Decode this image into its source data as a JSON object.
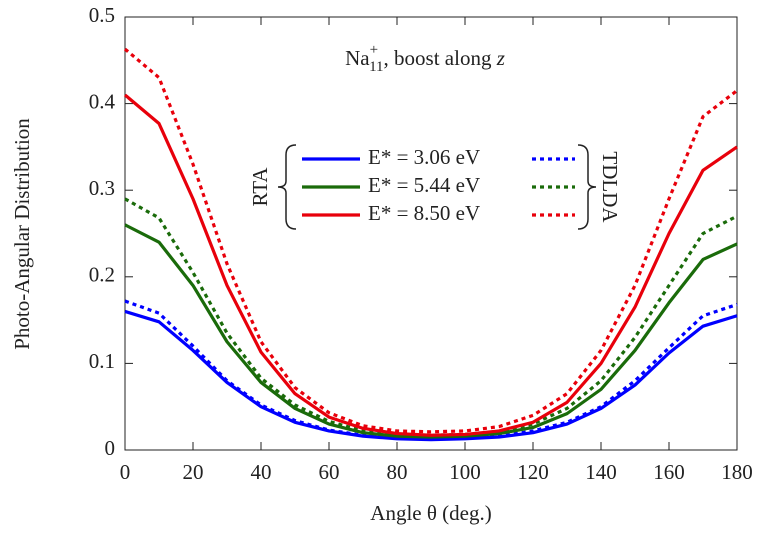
{
  "chart_data": {
    "type": "line",
    "title": {
      "base": "Na",
      "sup": "+",
      "sub": "11",
      "rest": ", boost along ",
      "var": "z"
    },
    "x_label": "Angle θ (deg.)",
    "y_label": "Photo-Angular Distribution",
    "x": [
      0,
      10,
      20,
      30,
      40,
      50,
      60,
      70,
      80,
      90,
      100,
      110,
      120,
      130,
      140,
      150,
      160,
      170,
      180
    ],
    "xlim": [
      0,
      180
    ],
    "xticks": [
      0,
      20,
      40,
      60,
      80,
      100,
      120,
      140,
      160,
      180
    ],
    "ylim": [
      0,
      0.5
    ],
    "yticks": [
      0,
      0.1,
      0.2,
      0.3,
      0.4,
      0.5
    ],
    "groups": [
      "RTA",
      "TDLDA"
    ],
    "dash": [
      "solid",
      "dotted"
    ],
    "series": [
      {
        "name": "E* = 3.06 eV",
        "color": "#0000ff",
        "RTA": [
          0.16,
          0.148,
          0.115,
          0.078,
          0.05,
          0.032,
          0.022,
          0.016,
          0.013,
          0.012,
          0.013,
          0.015,
          0.02,
          0.03,
          0.048,
          0.075,
          0.112,
          0.143,
          0.155
        ],
        "TDLDA": [
          0.172,
          0.158,
          0.12,
          0.08,
          0.052,
          0.034,
          0.023,
          0.017,
          0.014,
          0.013,
          0.014,
          0.016,
          0.022,
          0.032,
          0.05,
          0.08,
          0.118,
          0.155,
          0.168
        ]
      },
      {
        "name": "E* = 5.44 eV",
        "color": "#1a6b0a",
        "RTA": [
          0.26,
          0.24,
          0.19,
          0.125,
          0.078,
          0.048,
          0.03,
          0.02,
          0.016,
          0.015,
          0.016,
          0.019,
          0.026,
          0.042,
          0.07,
          0.115,
          0.17,
          0.22,
          0.238
        ],
        "TDLDA": [
          0.29,
          0.268,
          0.205,
          0.135,
          0.083,
          0.052,
          0.033,
          0.022,
          0.018,
          0.017,
          0.018,
          0.021,
          0.03,
          0.048,
          0.08,
          0.13,
          0.19,
          0.25,
          0.27
        ]
      },
      {
        "name": "E* = 8.50 eV",
        "color": "#e8000b",
        "RTA": [
          0.41,
          0.377,
          0.29,
          0.19,
          0.113,
          0.065,
          0.038,
          0.025,
          0.019,
          0.017,
          0.018,
          0.022,
          0.032,
          0.055,
          0.1,
          0.165,
          0.25,
          0.323,
          0.35
        ],
        "TDLDA": [
          0.463,
          0.43,
          0.33,
          0.215,
          0.125,
          0.072,
          0.043,
          0.028,
          0.022,
          0.021,
          0.022,
          0.027,
          0.04,
          0.065,
          0.115,
          0.19,
          0.29,
          0.385,
          0.415
        ]
      }
    ]
  }
}
